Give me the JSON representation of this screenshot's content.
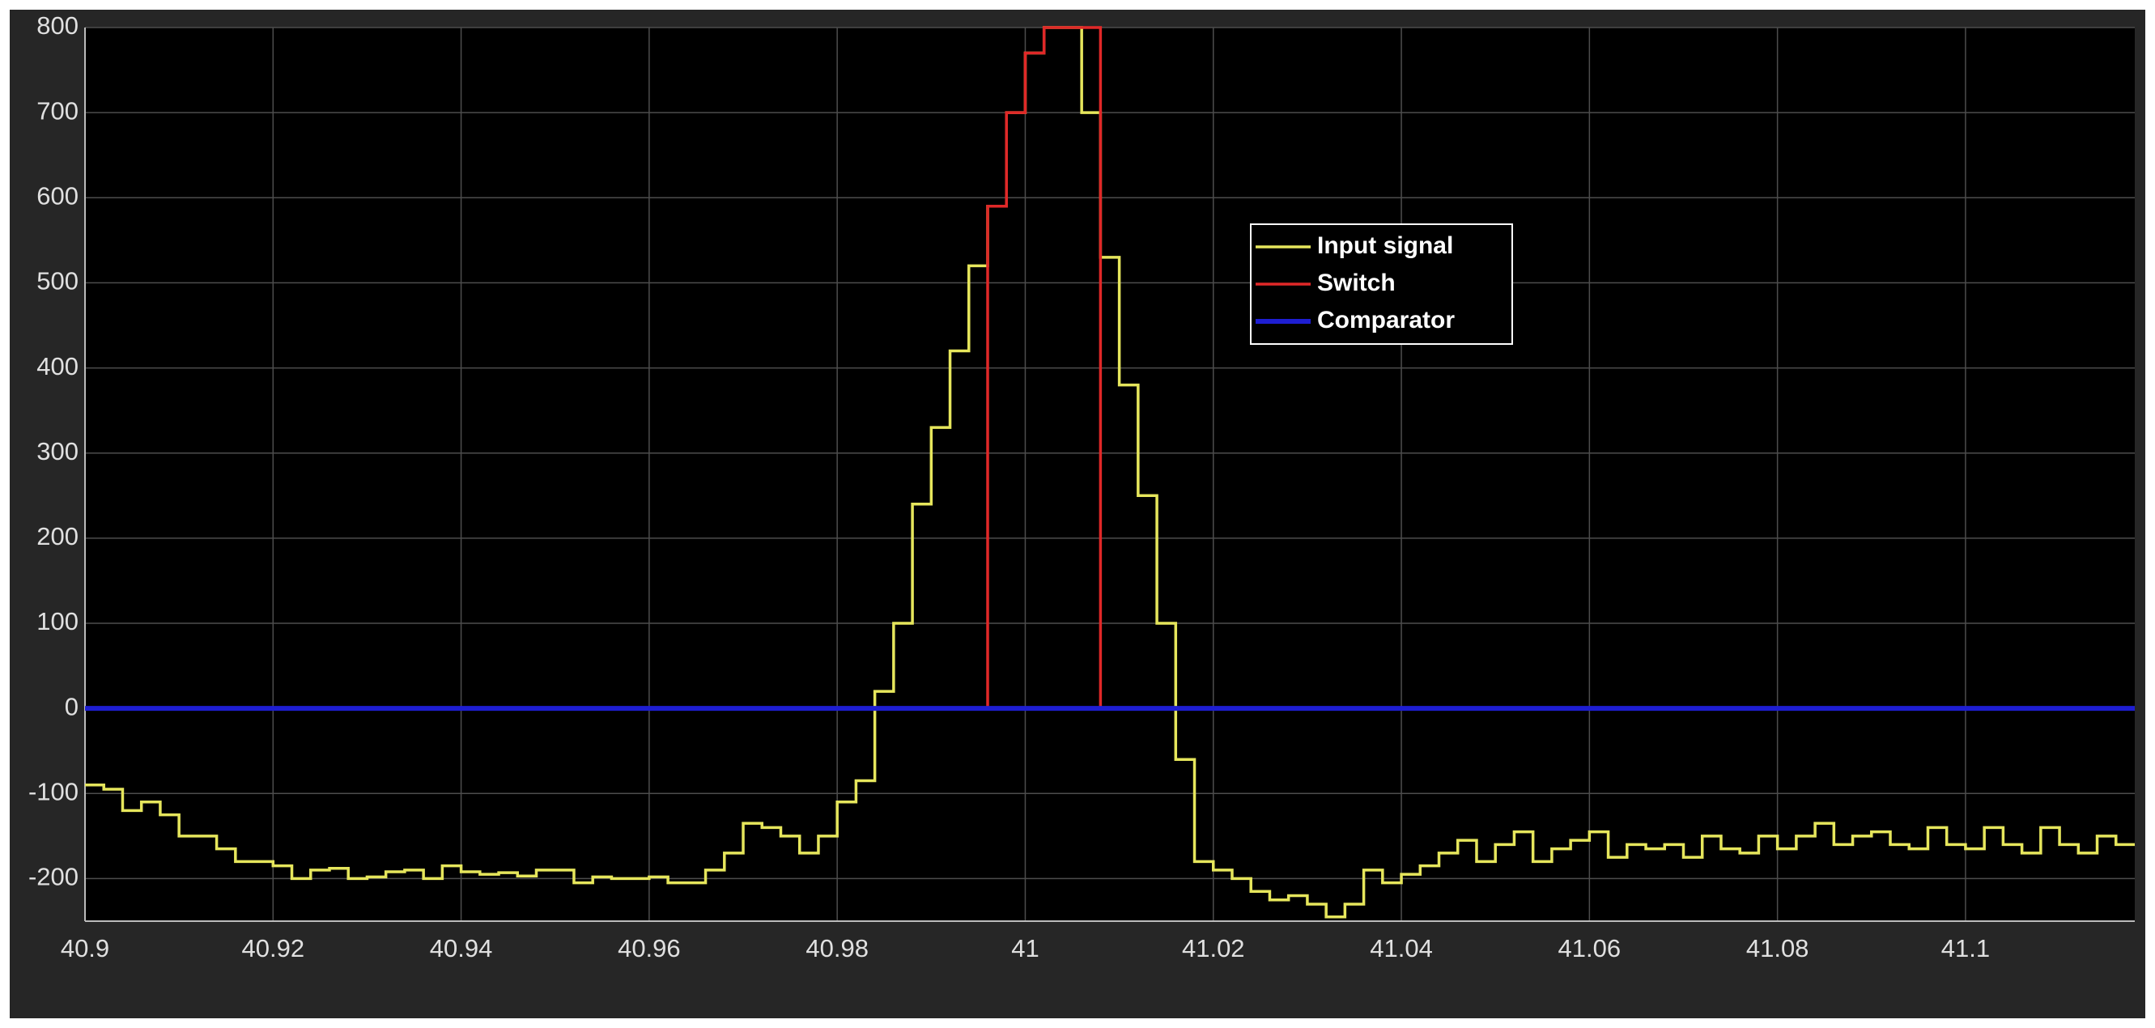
{
  "chart_data": {
    "type": "line",
    "drawstyle": "steps-post",
    "xlim": [
      40.9,
      41.118
    ],
    "ylim": [
      -250,
      800
    ],
    "xticks": [
      40.9,
      40.92,
      40.94,
      40.96,
      40.98,
      41,
      41.02,
      41.04,
      41.06,
      41.08,
      41.1
    ],
    "yticks": [
      -200,
      -100,
      0,
      100,
      200,
      300,
      400,
      500,
      600,
      700,
      800
    ],
    "grid": true,
    "legend": "upper right",
    "background": "#000000",
    "grid_color": "#4d4d4d",
    "series": [
      {
        "name": "Input signal",
        "color": "#e6e65c",
        "x": [
          40.9,
          40.902,
          40.904,
          40.906,
          40.908,
          40.91,
          40.912,
          40.914,
          40.916,
          40.918,
          40.92,
          40.922,
          40.924,
          40.926,
          40.928,
          40.93,
          40.932,
          40.934,
          40.936,
          40.938,
          40.94,
          40.942,
          40.944,
          40.946,
          40.948,
          40.95,
          40.952,
          40.954,
          40.956,
          40.958,
          40.96,
          40.962,
          40.964,
          40.966,
          40.968,
          40.97,
          40.972,
          40.974,
          40.976,
          40.978,
          40.98,
          40.982,
          40.984,
          40.986,
          40.988,
          40.99,
          40.992,
          40.994,
          40.996,
          40.998,
          41,
          41.002,
          41.004,
          41.006,
          41.008,
          41.01,
          41.012,
          41.014,
          41.016,
          41.018,
          41.02,
          41.022,
          41.024,
          41.026,
          41.028,
          41.03,
          41.032,
          41.034,
          41.036,
          41.038,
          41.04,
          41.042,
          41.044,
          41.046,
          41.048,
          41.05,
          41.052,
          41.054,
          41.056,
          41.058,
          41.06,
          41.062,
          41.064,
          41.066,
          41.068,
          41.07,
          41.072,
          41.074,
          41.076,
          41.078,
          41.08,
          41.082,
          41.084,
          41.086,
          41.088,
          41.09,
          41.092,
          41.094,
          41.096,
          41.098,
          41.1,
          41.102,
          41.104,
          41.106,
          41.108,
          41.11,
          41.112,
          41.114,
          41.116,
          41.118
        ],
        "values": [
          -90,
          -95,
          -120,
          -110,
          -125,
          -150,
          -150,
          -165,
          -180,
          -180,
          -185,
          -200,
          -190,
          -188,
          -200,
          -198,
          -192,
          -190,
          -200,
          -185,
          -192,
          -195,
          -193,
          -197,
          -190,
          -190,
          -205,
          -198,
          -200,
          -200,
          -198,
          -205,
          -205,
          -190,
          -170,
          -135,
          -140,
          -150,
          -170,
          -150,
          -110,
          -85,
          20,
          100,
          240,
          330,
          420,
          520,
          590,
          700,
          770,
          800,
          800,
          700,
          530,
          380,
          250,
          100,
          -60,
          -180,
          -190,
          -200,
          -215,
          -225,
          -220,
          -230,
          -245,
          -230,
          -190,
          -205,
          -195,
          -185,
          -170,
          -155,
          -180,
          -160,
          -145,
          -180,
          -165,
          -155,
          -145,
          -175,
          -160,
          -165,
          -160,
          -175,
          -150,
          -165,
          -170,
          -150,
          -165,
          -150,
          -135,
          -160,
          -150,
          -145,
          -160,
          -165,
          -140,
          -160,
          -165,
          -140,
          -160,
          -170,
          -140,
          -160,
          -170,
          -150,
          -160,
          -160
        ]
      },
      {
        "name": "Switch",
        "color": "#e02828",
        "x": [
          40.9,
          40.996,
          40.998,
          41,
          41.002,
          41.008,
          41.118
        ],
        "values": [
          0,
          590,
          700,
          770,
          800,
          0,
          0
        ]
      },
      {
        "name": "Comparator",
        "color": "#1e1ed2",
        "x": [
          40.9,
          41.118
        ],
        "values": [
          0,
          0
        ]
      }
    ]
  }
}
